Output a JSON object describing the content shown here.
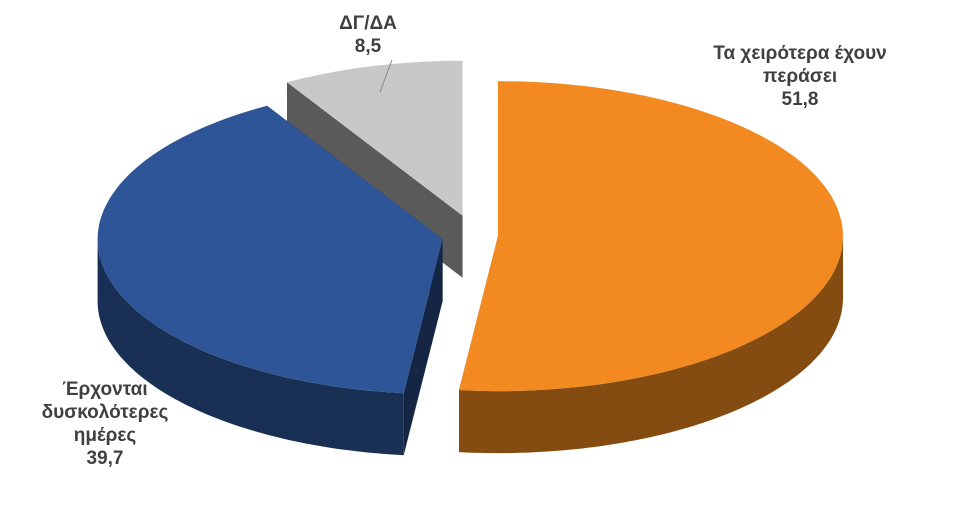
{
  "chart_data": {
    "type": "pie3d",
    "categories": [
      "Τα χειρότερα έχουν περάσει",
      "Έρχονται δυσκολότερες ημέρες",
      "ΔΓ/ΔΑ"
    ],
    "values": [
      51.8,
      39.7,
      8.5
    ],
    "value_labels": [
      "51,8",
      "39,7",
      "8,5"
    ],
    "colors": [
      "#f28a21",
      "#2e5597",
      "#c8c8c8"
    ]
  }
}
